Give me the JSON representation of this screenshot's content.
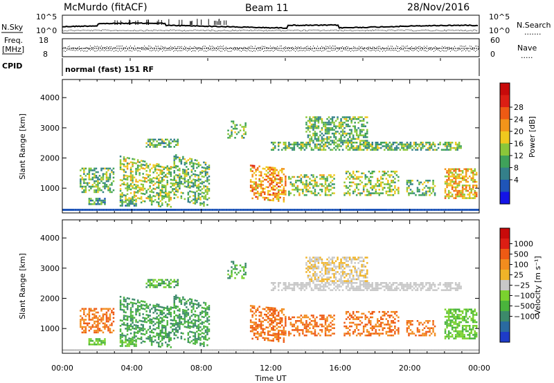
{
  "header": {
    "station": "McMurdo (fitACF)",
    "beam": "Beam 11",
    "date": "28/Nov/2016"
  },
  "noise_panel": {
    "left_label": "N.Sky",
    "right_label": "N.Search",
    "right_dots": ".......",
    "left_ticks": [
      "10^5",
      "10^0"
    ],
    "right_ticks": [
      "10^5",
      "10^0"
    ]
  },
  "freq_panel": {
    "left_label_line1": "Freq.",
    "left_label_line2": "[MHz]",
    "right_label": "Nave",
    "right_dots": ".....",
    "left_ticks": [
      "18",
      "8"
    ],
    "right_ticks": [
      "60",
      "0"
    ]
  },
  "cpid_panel": {
    "label": "CPID",
    "text": "normal (fast) 151 RF"
  },
  "chart_data": [
    {
      "type": "heatmap",
      "name": "power",
      "ylabel": "Slant Range [km]",
      "ylim": [
        180,
        4600
      ],
      "yticks": [
        1000,
        2000,
        3000,
        4000
      ],
      "x_ticks": [
        "00:00",
        "04:00",
        "08:00",
        "12:00",
        "16:00",
        "20:00",
        "00:00"
      ],
      "colorbar_label": "Power [dB]",
      "colorbar_ticks": [
        "4",
        "8",
        "12",
        "16",
        "20",
        "24",
        "28"
      ],
      "colorbar_colors": [
        "#1414e6",
        "#1f55b8",
        "#34808a",
        "#3fa25a",
        "#8ac73a",
        "#f0c81e",
        "#f2941a",
        "#ee5a14",
        "#dc1e14",
        "#c80a0a"
      ]
    },
    {
      "type": "heatmap",
      "name": "velocity",
      "ylabel": "Slant Range [km]",
      "ylim": [
        180,
        4600
      ],
      "yticks": [
        1000,
        2000,
        3000,
        4000
      ],
      "x_ticks": [
        "00:00",
        "04:00",
        "08:00",
        "12:00",
        "16:00",
        "20:00",
        "00:00"
      ],
      "xlabel": "Time UT",
      "colorbar_label": "Velocity [m s⁻¹]",
      "colorbar_ticks": [
        "1000",
        "500",
        "100",
        "25",
        "−25",
        "−100",
        "−500",
        "−1000"
      ],
      "colorbar_colors": [
        "#1e3cc8",
        "#2a6aa0",
        "#3c8a6a",
        "#4ab43c",
        "#7ad22e",
        "#c8c8c8",
        "#f0b428",
        "#f28c1e",
        "#ee5a14",
        "#dc1e14",
        "#c80a0a"
      ]
    }
  ]
}
